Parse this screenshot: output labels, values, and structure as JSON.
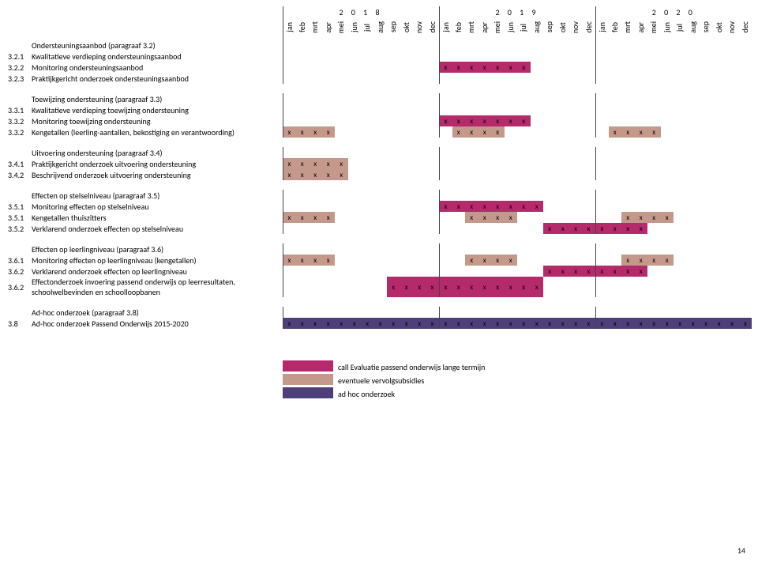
{
  "years": [
    "2 0 1 8",
    "2 0 1 9",
    "2 0 2 0"
  ],
  "months": [
    "jan",
    "feb",
    "mrt",
    "apr",
    "mei",
    "jun",
    "jul",
    "aug",
    "sep",
    "okt",
    "nov",
    "dec"
  ],
  "colors": {
    "call": "#b52a6b",
    "vervolg": "#c4988a",
    "adhoc": "#4e3f7a"
  },
  "legend": [
    {
      "color": "#b52a6b",
      "label": "call Evaluatie passend onderwijs lange termijn"
    },
    {
      "color": "#c4988a",
      "label": "eventuele vervolgsubsidies"
    },
    {
      "color": "#4e3f7a",
      "label": "ad hoc onderzoek"
    }
  ],
  "page": "14",
  "rows": [
    {
      "num": "",
      "label": "Ondersteuningsaanbod (paragraaf 3.2)",
      "cells": []
    },
    {
      "num": "3.2.1",
      "label": "Kwalitatieve verdieping ondersteuningsaanbod",
      "cells": []
    },
    {
      "num": "3.2.2",
      "label": "Monitoring ondersteuningsaanbod",
      "cells": [
        {
          "i": 12,
          "c": "#b52a6b",
          "x": 1
        },
        {
          "i": 13,
          "c": "#b52a6b",
          "x": 1
        },
        {
          "i": 14,
          "c": "#b52a6b",
          "x": 1
        },
        {
          "i": 15,
          "c": "#b52a6b",
          "x": 1
        },
        {
          "i": 16,
          "c": "#b52a6b",
          "x": 1
        },
        {
          "i": 17,
          "c": "#b52a6b",
          "x": 1
        },
        {
          "i": 18,
          "c": "#b52a6b",
          "x": 1
        }
      ]
    },
    {
      "num": "3.2.3",
      "label": "Praktijkgericht onderzoek ondersteuningsaanbod",
      "cells": []
    },
    {
      "spacer": true
    },
    {
      "num": "",
      "label": "Toewijzing ondersteuning (paragraaf 3.3)",
      "cells": []
    },
    {
      "num": "3.3.1",
      "label": "Kwalitatieve verdieping toewijzing ondersteuning",
      "cells": []
    },
    {
      "num": "3.3.2",
      "label": "Monitoring toewijzing ondersteuning",
      "cells": [
        {
          "i": 12,
          "c": "#b52a6b",
          "x": 1
        },
        {
          "i": 13,
          "c": "#b52a6b",
          "x": 1
        },
        {
          "i": 14,
          "c": "#b52a6b",
          "x": 1
        },
        {
          "i": 15,
          "c": "#b52a6b",
          "x": 1
        },
        {
          "i": 16,
          "c": "#b52a6b",
          "x": 1
        },
        {
          "i": 17,
          "c": "#b52a6b",
          "x": 1
        },
        {
          "i": 18,
          "c": "#b52a6b",
          "x": 1
        }
      ]
    },
    {
      "num": "3.3.2",
      "label": "Kengetallen (leerling-aantallen, bekostiging en verantwoording)",
      "cells": [
        {
          "i": 0,
          "c": "#c4988a",
          "x": 1
        },
        {
          "i": 1,
          "c": "#c4988a",
          "x": 1
        },
        {
          "i": 2,
          "c": "#c4988a",
          "x": 1
        },
        {
          "i": 3,
          "c": "#c4988a",
          "x": 1
        },
        {
          "i": 13,
          "c": "#c4988a",
          "x": 1
        },
        {
          "i": 14,
          "c": "#c4988a",
          "x": 1
        },
        {
          "i": 15,
          "c": "#c4988a",
          "x": 1
        },
        {
          "i": 16,
          "c": "#c4988a",
          "x": 1
        },
        {
          "i": 25,
          "c": "#c4988a",
          "x": 1
        },
        {
          "i": 26,
          "c": "#c4988a",
          "x": 1
        },
        {
          "i": 27,
          "c": "#c4988a",
          "x": 1
        },
        {
          "i": 28,
          "c": "#c4988a",
          "x": 1
        }
      ]
    },
    {
      "spacer": true
    },
    {
      "num": "",
      "label": "Uitvoering ondersteuning (paragraaf 3.4)",
      "cells": []
    },
    {
      "num": "3.4.1",
      "label": "Praktijkgericht onderzoek uitvoering ondersteuning",
      "cells": [
        {
          "i": 0,
          "c": "#c4988a",
          "x": 1
        },
        {
          "i": 1,
          "c": "#c4988a",
          "x": 1
        },
        {
          "i": 2,
          "c": "#c4988a",
          "x": 1
        },
        {
          "i": 3,
          "c": "#c4988a",
          "x": 1
        },
        {
          "i": 4,
          "c": "#c4988a",
          "x": 1
        }
      ]
    },
    {
      "num": "3.4.2",
      "label": "Beschrijvend onderzoek uitvoering ondersteuning",
      "cells": [
        {
          "i": 0,
          "c": "#c4988a",
          "x": 1
        },
        {
          "i": 1,
          "c": "#c4988a",
          "x": 1
        },
        {
          "i": 2,
          "c": "#c4988a",
          "x": 1
        },
        {
          "i": 3,
          "c": "#c4988a",
          "x": 1
        },
        {
          "i": 4,
          "c": "#c4988a",
          "x": 1
        }
      ]
    },
    {
      "spacer": true
    },
    {
      "num": "",
      "label": "Effecten op stelselniveau (paragraaf 3.5)",
      "cells": []
    },
    {
      "num": "3.5.1",
      "label": "Monitoring effecten op stelselniveau",
      "cells": [
        {
          "i": 12,
          "c": "#b52a6b",
          "x": 1
        },
        {
          "i": 13,
          "c": "#b52a6b",
          "x": 1
        },
        {
          "i": 14,
          "c": "#b52a6b",
          "x": 1
        },
        {
          "i": 15,
          "c": "#b52a6b",
          "x": 1
        },
        {
          "i": 16,
          "c": "#b52a6b",
          "x": 1
        },
        {
          "i": 17,
          "c": "#b52a6b",
          "x": 1
        },
        {
          "i": 18,
          "c": "#b52a6b",
          "x": 1
        },
        {
          "i": 19,
          "c": "#b52a6b",
          "x": 1
        }
      ]
    },
    {
      "num": "3.5.1",
      "label": "Kengetallen thuiszitters",
      "cells": [
        {
          "i": 0,
          "c": "#c4988a",
          "x": 1
        },
        {
          "i": 1,
          "c": "#c4988a",
          "x": 1
        },
        {
          "i": 2,
          "c": "#c4988a",
          "x": 1
        },
        {
          "i": 3,
          "c": "#c4988a",
          "x": 1
        },
        {
          "i": 14,
          "c": "#c4988a",
          "x": 1
        },
        {
          "i": 15,
          "c": "#c4988a",
          "x": 1
        },
        {
          "i": 16,
          "c": "#c4988a",
          "x": 1
        },
        {
          "i": 17,
          "c": "#c4988a",
          "x": 1
        },
        {
          "i": 26,
          "c": "#c4988a",
          "x": 1
        },
        {
          "i": 27,
          "c": "#c4988a",
          "x": 1
        },
        {
          "i": 28,
          "c": "#c4988a",
          "x": 1
        },
        {
          "i": 29,
          "c": "#c4988a",
          "x": 1
        }
      ]
    },
    {
      "num": "3.5.2",
      "label": "Verklarend onderzoek effecten op stelselniveau",
      "cells": [
        {
          "i": 20,
          "c": "#b52a6b",
          "x": 1
        },
        {
          "i": 21,
          "c": "#b52a6b",
          "x": 1
        },
        {
          "i": 22,
          "c": "#b52a6b",
          "x": 1
        },
        {
          "i": 23,
          "c": "#b52a6b",
          "x": 1
        },
        {
          "i": 24,
          "c": "#b52a6b",
          "x": 1
        },
        {
          "i": 25,
          "c": "#b52a6b",
          "x": 1
        },
        {
          "i": 26,
          "c": "#b52a6b",
          "x": 1
        },
        {
          "i": 27,
          "c": "#b52a6b",
          "x": 1
        }
      ]
    },
    {
      "spacer": true
    },
    {
      "num": "",
      "label": "Effecten op leerlingniveau (paragraaf 3.6)",
      "cells": []
    },
    {
      "num": "3.6.1",
      "label": "Monitoring effecten op leerlingniveau (kengetallen)",
      "cells": [
        {
          "i": 0,
          "c": "#c4988a",
          "x": 1
        },
        {
          "i": 1,
          "c": "#c4988a",
          "x": 1
        },
        {
          "i": 2,
          "c": "#c4988a",
          "x": 1
        },
        {
          "i": 3,
          "c": "#c4988a",
          "x": 1
        },
        {
          "i": 14,
          "c": "#c4988a",
          "x": 1
        },
        {
          "i": 15,
          "c": "#c4988a",
          "x": 1
        },
        {
          "i": 16,
          "c": "#c4988a",
          "x": 1
        },
        {
          "i": 17,
          "c": "#c4988a",
          "x": 1
        },
        {
          "i": 26,
          "c": "#c4988a",
          "x": 1
        },
        {
          "i": 27,
          "c": "#c4988a",
          "x": 1
        },
        {
          "i": 28,
          "c": "#c4988a",
          "x": 1
        },
        {
          "i": 29,
          "c": "#c4988a",
          "x": 1
        }
      ]
    },
    {
      "num": "3.6.2",
      "label": "Verklarend onderzoek effecten op leerlingniveau",
      "cells": [
        {
          "i": 20,
          "c": "#b52a6b",
          "x": 1
        },
        {
          "i": 21,
          "c": "#b52a6b",
          "x": 1
        },
        {
          "i": 22,
          "c": "#b52a6b",
          "x": 1
        },
        {
          "i": 23,
          "c": "#b52a6b",
          "x": 1
        },
        {
          "i": 24,
          "c": "#b52a6b",
          "x": 1
        },
        {
          "i": 25,
          "c": "#b52a6b",
          "x": 1
        },
        {
          "i": 26,
          "c": "#b52a6b",
          "x": 1
        },
        {
          "i": 27,
          "c": "#b52a6b",
          "x": 1
        }
      ]
    },
    {
      "num": "3.6.2",
      "label": "Effectonderzoek invoering passend onderwijs op leerresultaten, schoolwelbevinden en schoolloopbanen",
      "cells": [
        {
          "i": 8,
          "c": "#b52a6b",
          "x": 1
        },
        {
          "i": 9,
          "c": "#b52a6b",
          "x": 1
        },
        {
          "i": 10,
          "c": "#b52a6b",
          "x": 1
        },
        {
          "i": 11,
          "c": "#b52a6b",
          "x": 1
        },
        {
          "i": 12,
          "c": "#b52a6b",
          "x": 1
        },
        {
          "i": 13,
          "c": "#b52a6b",
          "x": 1
        },
        {
          "i": 14,
          "c": "#b52a6b",
          "x": 1
        },
        {
          "i": 15,
          "c": "#b52a6b",
          "x": 1
        },
        {
          "i": 16,
          "c": "#b52a6b",
          "x": 1
        },
        {
          "i": 17,
          "c": "#b52a6b",
          "x": 1
        },
        {
          "i": 18,
          "c": "#b52a6b",
          "x": 1
        },
        {
          "i": 19,
          "c": "#b52a6b",
          "x": 1
        }
      ]
    },
    {
      "spacer": true
    },
    {
      "num": "",
      "label": "Ad-hoc onderzoek (paragraaf 3.8)",
      "cells": []
    },
    {
      "num": "3.8",
      "label": "Ad-hoc onderzoek Passend Onderwijs 2015-2020",
      "cells": [
        {
          "i": 0,
          "c": "#4e3f7a",
          "x": 1
        },
        {
          "i": 1,
          "c": "#4e3f7a",
          "x": 1
        },
        {
          "i": 2,
          "c": "#4e3f7a",
          "x": 1
        },
        {
          "i": 3,
          "c": "#4e3f7a",
          "x": 1
        },
        {
          "i": 4,
          "c": "#4e3f7a",
          "x": 1
        },
        {
          "i": 5,
          "c": "#4e3f7a",
          "x": 1
        },
        {
          "i": 6,
          "c": "#4e3f7a",
          "x": 1
        },
        {
          "i": 7,
          "c": "#4e3f7a",
          "x": 1
        },
        {
          "i": 8,
          "c": "#4e3f7a",
          "x": 1
        },
        {
          "i": 9,
          "c": "#4e3f7a",
          "x": 1
        },
        {
          "i": 10,
          "c": "#4e3f7a",
          "x": 1
        },
        {
          "i": 11,
          "c": "#4e3f7a",
          "x": 1
        },
        {
          "i": 12,
          "c": "#4e3f7a",
          "x": 1
        },
        {
          "i": 13,
          "c": "#4e3f7a",
          "x": 1
        },
        {
          "i": 14,
          "c": "#4e3f7a",
          "x": 1
        },
        {
          "i": 15,
          "c": "#4e3f7a",
          "x": 1
        },
        {
          "i": 16,
          "c": "#4e3f7a",
          "x": 1
        },
        {
          "i": 17,
          "c": "#4e3f7a",
          "x": 1
        },
        {
          "i": 18,
          "c": "#4e3f7a",
          "x": 1
        },
        {
          "i": 19,
          "c": "#4e3f7a",
          "x": 1
        },
        {
          "i": 20,
          "c": "#4e3f7a",
          "x": 1
        },
        {
          "i": 21,
          "c": "#4e3f7a",
          "x": 1
        },
        {
          "i": 22,
          "c": "#4e3f7a",
          "x": 1
        },
        {
          "i": 23,
          "c": "#4e3f7a",
          "x": 1
        },
        {
          "i": 24,
          "c": "#4e3f7a",
          "x": 1
        },
        {
          "i": 25,
          "c": "#4e3f7a",
          "x": 1
        },
        {
          "i": 26,
          "c": "#4e3f7a",
          "x": 1
        },
        {
          "i": 27,
          "c": "#4e3f7a",
          "x": 1
        },
        {
          "i": 28,
          "c": "#4e3f7a",
          "x": 1
        },
        {
          "i": 29,
          "c": "#4e3f7a",
          "x": 1
        },
        {
          "i": 30,
          "c": "#4e3f7a",
          "x": 1
        },
        {
          "i": 31,
          "c": "#4e3f7a",
          "x": 1
        },
        {
          "i": 32,
          "c": "#4e3f7a",
          "x": 1
        },
        {
          "i": 33,
          "c": "#4e3f7a",
          "x": 1
        },
        {
          "i": 34,
          "c": "#4e3f7a",
          "x": 1
        },
        {
          "i": 35,
          "c": "#4e3f7a",
          "x": 1
        }
      ]
    }
  ]
}
